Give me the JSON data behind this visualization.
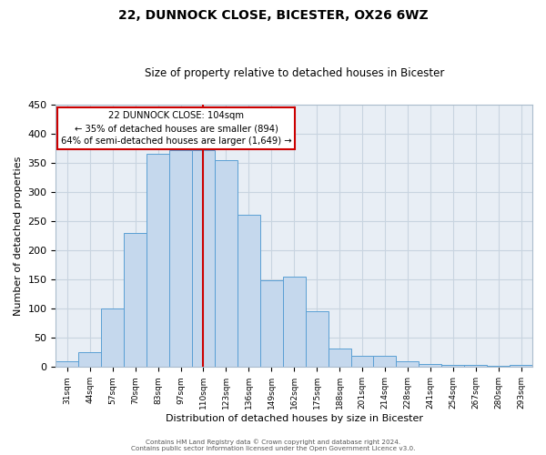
{
  "title": "22, DUNNOCK CLOSE, BICESTER, OX26 6WZ",
  "subtitle": "Size of property relative to detached houses in Bicester",
  "xlabel": "Distribution of detached houses by size in Bicester",
  "ylabel": "Number of detached properties",
  "bin_labels": [
    "31sqm",
    "44sqm",
    "57sqm",
    "70sqm",
    "83sqm",
    "97sqm",
    "110sqm",
    "123sqm",
    "136sqm",
    "149sqm",
    "162sqm",
    "175sqm",
    "188sqm",
    "201sqm",
    "214sqm",
    "228sqm",
    "241sqm",
    "254sqm",
    "267sqm",
    "280sqm",
    "293sqm"
  ],
  "bar_heights": [
    10,
    25,
    100,
    230,
    365,
    372,
    372,
    355,
    260,
    148,
    155,
    95,
    32,
    20,
    20,
    10,
    5,
    4,
    4,
    2,
    4
  ],
  "bar_color": "#c5d8ed",
  "bar_edge_color": "#5a9fd4",
  "vline_x": 6.0,
  "vline_color": "#cc0000",
  "annotation_title": "22 DUNNOCK CLOSE: 104sqm",
  "annotation_line2": "← 35% of detached houses are smaller (894)",
  "annotation_line3": "64% of semi-detached houses are larger (1,649) →",
  "annotation_box_color": "#ffffff",
  "annotation_box_edge": "#cc0000",
  "ylim": [
    0,
    450
  ],
  "yticks": [
    0,
    50,
    100,
    150,
    200,
    250,
    300,
    350,
    400,
    450
  ],
  "footer1": "Contains HM Land Registry data © Crown copyright and database right 2024.",
  "footer2": "Contains public sector information licensed under the Open Government Licence v3.0.",
  "background_color": "#ffffff",
  "plot_bg_color": "#e8eef5",
  "grid_color": "#c8d4e0"
}
